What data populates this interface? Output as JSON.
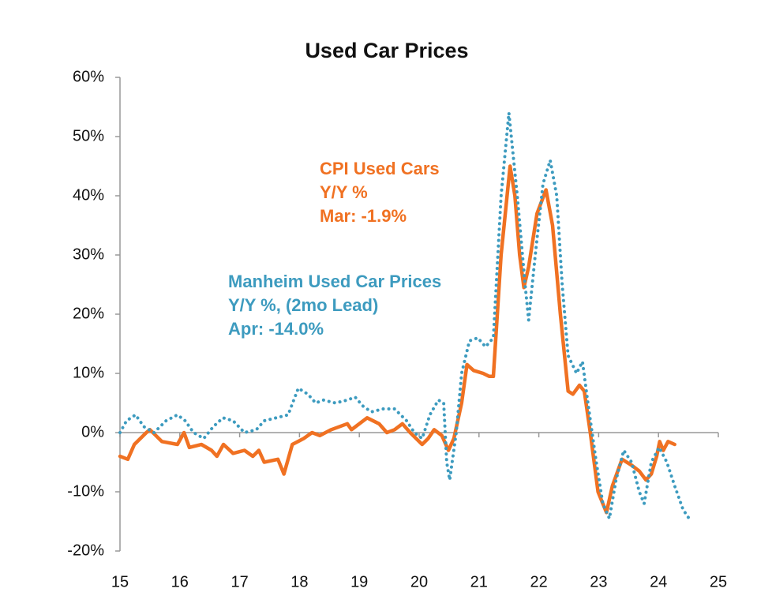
{
  "chart_data": {
    "type": "line",
    "title": "Used Car Prices",
    "xlim": [
      15,
      25
    ],
    "xticks": [
      15,
      16,
      17,
      18,
      19,
      20,
      21,
      22,
      23,
      24,
      25
    ],
    "ylim": [
      -20,
      60
    ],
    "yticks": [
      {
        "value": -20,
        "label": "-20%"
      },
      {
        "value": -10,
        "label": "-10%"
      },
      {
        "value": 0,
        "label": "0%"
      },
      {
        "value": 10,
        "label": "10%"
      },
      {
        "value": 20,
        "label": "20%"
      },
      {
        "value": 30,
        "label": "30%"
      },
      {
        "value": 40,
        "label": "40%"
      },
      {
        "value": 50,
        "label": "50%"
      },
      {
        "value": 60,
        "label": "60%"
      }
    ],
    "series": [
      {
        "name": "CPI Used Cars",
        "color": "#f07122",
        "dash": false,
        "x": [
          15.0,
          15.13,
          15.24,
          15.44,
          15.5,
          15.7,
          15.96,
          16.07,
          16.16,
          16.36,
          16.53,
          16.62,
          16.73,
          16.89,
          17.08,
          17.22,
          17.32,
          17.41,
          17.64,
          17.74,
          17.88,
          18.07,
          18.21,
          18.34,
          18.53,
          18.8,
          18.87,
          19.13,
          19.33,
          19.46,
          19.59,
          19.72,
          19.85,
          20.05,
          20.15,
          20.25,
          20.38,
          20.49,
          20.58,
          20.71,
          20.8,
          20.91,
          21.07,
          21.17,
          21.24,
          21.37,
          21.52,
          21.6,
          21.68,
          21.75,
          21.83,
          21.97,
          22.12,
          22.23,
          22.36,
          22.49,
          22.57,
          22.68,
          22.76,
          22.86,
          22.99,
          23.13,
          23.23,
          23.39,
          23.55,
          23.68,
          23.79,
          23.88,
          23.97,
          24.02,
          24.08,
          24.16,
          24.27
        ],
        "values": [
          -4,
          -4.5,
          -2,
          0,
          0.5,
          -1.5,
          -2,
          0,
          -2.5,
          -2,
          -3,
          -4,
          -2,
          -3.5,
          -3,
          -4,
          -3,
          -5,
          -4.5,
          -7,
          -2,
          -1,
          0,
          -0.5,
          0.5,
          1.5,
          0.5,
          2.5,
          1.5,
          0,
          0.5,
          1.5,
          0,
          -2,
          -1,
          0.5,
          -0.5,
          -3,
          -1,
          5,
          11.5,
          10.5,
          10,
          9.5,
          9.5,
          30,
          45,
          40,
          30,
          24.5,
          28,
          37,
          41,
          35,
          20,
          7,
          6.5,
          8,
          7,
          0,
          -10,
          -13.5,
          -9,
          -4.5,
          -5.5,
          -6.5,
          -8,
          -7,
          -4,
          -1.5,
          -3,
          -1.5,
          -2
        ]
      },
      {
        "name": "Manheim Used Car Prices",
        "color": "#3d9bbf",
        "dash": true,
        "x": [
          15.0,
          15.11,
          15.26,
          15.4,
          15.57,
          15.77,
          15.96,
          16.09,
          16.23,
          16.4,
          16.56,
          16.72,
          16.89,
          17.08,
          17.28,
          17.41,
          17.61,
          17.81,
          17.98,
          18.14,
          18.27,
          18.4,
          18.6,
          18.8,
          18.93,
          19.06,
          19.2,
          19.39,
          19.59,
          19.79,
          19.92,
          20.05,
          20.18,
          20.32,
          20.41,
          20.46,
          20.51,
          20.62,
          20.71,
          20.84,
          20.98,
          21.11,
          21.24,
          21.37,
          21.5,
          21.64,
          21.77,
          21.83,
          21.94,
          22.07,
          22.19,
          22.3,
          22.39,
          22.49,
          22.63,
          22.73,
          22.82,
          22.96,
          23.07,
          23.18,
          23.29,
          23.42,
          23.55,
          23.68,
          23.76,
          23.88,
          24.01,
          24.14,
          24.27,
          24.41,
          24.51
        ],
        "values": [
          0,
          2,
          3,
          1,
          0,
          2,
          3,
          2,
          0,
          -1,
          1,
          2.5,
          2,
          0,
          0.5,
          2,
          2.5,
          3,
          7.5,
          6.5,
          5,
          5.5,
          5,
          5.5,
          6,
          4.5,
          3.5,
          4,
          4,
          2,
          0,
          -1,
          3,
          5.5,
          5,
          -5,
          -8,
          0,
          10,
          15.5,
          16,
          14.5,
          16,
          40,
          54,
          40,
          25,
          19,
          30,
          42,
          46,
          40,
          25,
          13,
          10,
          12,
          5,
          -5,
          -12,
          -14.5,
          -8,
          -3,
          -5,
          -10,
          -12,
          -5,
          -2.5,
          -5,
          -9,
          -13,
          -14.5
        ]
      }
    ],
    "annotations": [
      {
        "color": "#f07122",
        "lines": [
          "CPI Used Cars",
          "Y/Y %",
          "Mar: -1.9%"
        ]
      },
      {
        "color": "#3d9bbf",
        "lines": [
          "Manheim Used Car Prices",
          "Y/Y %, (2mo Lead)",
          "Apr: -14.0%"
        ]
      }
    ]
  }
}
